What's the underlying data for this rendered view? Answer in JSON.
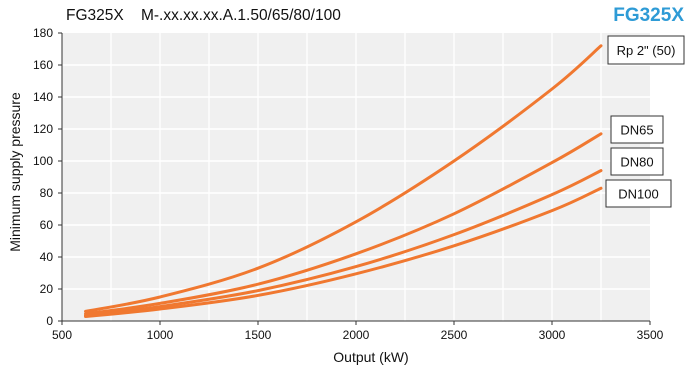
{
  "header": {
    "model_line": "FG325X    M-.xx.xx.xx.A.1.50/65/80/100",
    "brand": "FG325X"
  },
  "colors": {
    "curve": "#f07830",
    "plot_bg": "#f0f0f0",
    "grid": "#ffffff",
    "brand": "#2e9bd6"
  },
  "chart_data": {
    "type": "line",
    "title": "FG325X    M-.xx.xx.xx.A.1.50/65/80/100",
    "xlabel": "Output (kW)",
    "ylabel": "Minimum supply pressure",
    "xlim": [
      500,
      3500
    ],
    "ylim": [
      0,
      180
    ],
    "xticks": [
      500,
      1000,
      1500,
      2000,
      2500,
      3000,
      3500
    ],
    "yticks": [
      0,
      20,
      40,
      60,
      80,
      100,
      120,
      140,
      160,
      180
    ],
    "grid": true,
    "series": [
      {
        "name": "Rp 2\" (50)",
        "x": [
          620,
          1000,
          1500,
          2000,
          2500,
          3000,
          3250
        ],
        "y": [
          6,
          15,
          33,
          62,
          100,
          145,
          172
        ]
      },
      {
        "name": "DN65",
        "x": [
          620,
          1000,
          1500,
          2000,
          2500,
          3000,
          3250
        ],
        "y": [
          4.5,
          11,
          23,
          42,
          67,
          99,
          117
        ]
      },
      {
        "name": "DN80",
        "x": [
          620,
          1000,
          1500,
          2000,
          2500,
          3000,
          3250
        ],
        "y": [
          3.5,
          9,
          19,
          34,
          54,
          79,
          94
        ]
      },
      {
        "name": "DN100",
        "x": [
          620,
          1000,
          1500,
          2000,
          2500,
          3000,
          3250
        ],
        "y": [
          2.8,
          7.5,
          16,
          29.5,
          47,
          69,
          83
        ]
      }
    ]
  }
}
